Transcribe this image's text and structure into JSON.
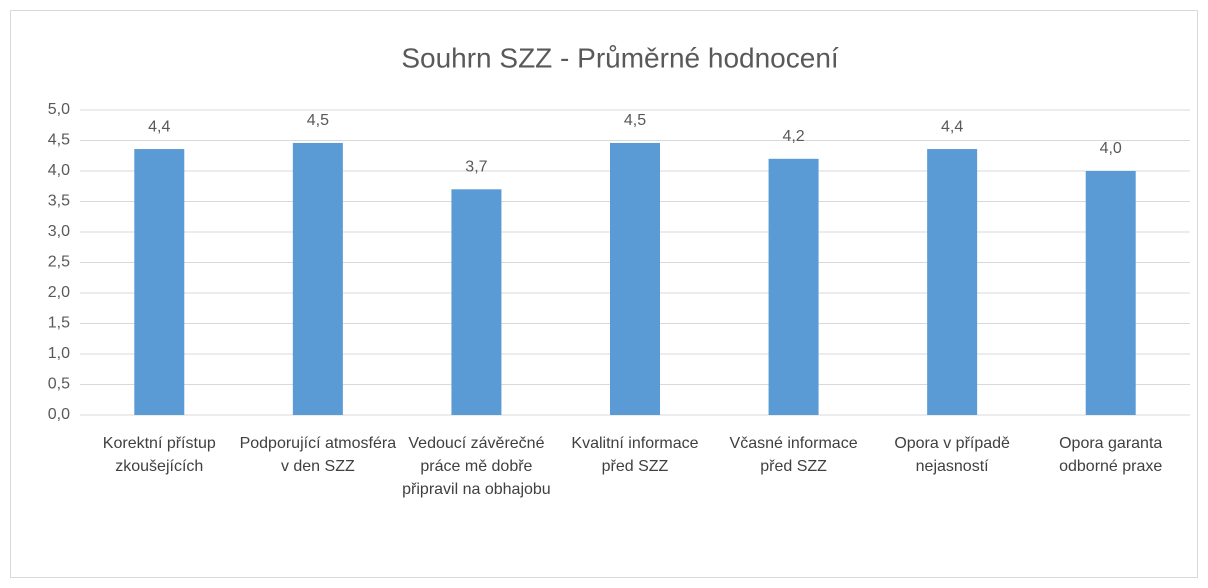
{
  "chart_data": {
    "type": "bar",
    "title": "Souhrn SZZ - Průměrné hodnocení",
    "categories": [
      "Korektní přístup zkoušejících",
      "Podporující atmosféra v den SZZ",
      "Vedoucí závěrečné práce mě dobře připravil na obhajobu",
      "Kvalitní informace před SZZ",
      "Včasné informace před SZZ",
      "Opora v případě nejasností",
      "Opora garanta odborné praxe"
    ],
    "values": [
      4.36,
      4.46,
      3.7,
      4.46,
      4.2,
      4.36,
      4.0
    ],
    "value_labels": [
      "4,4",
      "4,5",
      "3,7",
      "4,5",
      "4,2",
      "4,4",
      "4,0"
    ],
    "color": "#5b9bd5",
    "ylim": [
      0,
      5
    ],
    "yticks": [
      {
        "value": 0,
        "label": "0,0"
      },
      {
        "value": 0.5,
        "label": "0,5"
      },
      {
        "value": 1,
        "label": "1,0"
      },
      {
        "value": 1.5,
        "label": "1,5"
      },
      {
        "value": 2,
        "label": "2,0"
      },
      {
        "value": 2.5,
        "label": "2,5"
      },
      {
        "value": 3,
        "label": "3,0"
      },
      {
        "value": 3.5,
        "label": "3,5"
      },
      {
        "value": 4,
        "label": "4,0"
      },
      {
        "value": 4.5,
        "label": "4,5"
      },
      {
        "value": 5,
        "label": "5,0"
      }
    ],
    "grid": true
  }
}
